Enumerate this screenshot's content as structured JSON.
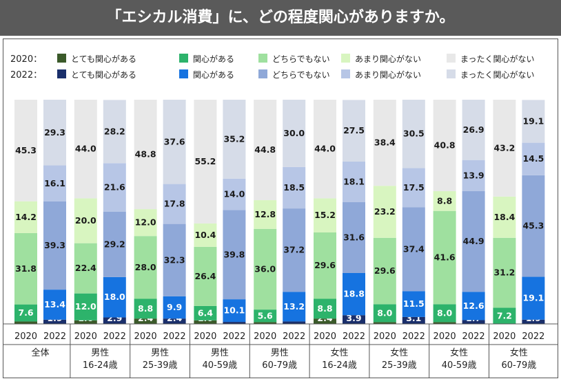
{
  "header": {
    "title": "「エシカル消費」に、どの程度関心がありますか。"
  },
  "legend": {
    "rows": [
      {
        "year": "2020：",
        "items": [
          {
            "label": "とても関心がある",
            "color": "#3b5a2a"
          },
          {
            "label": "関心がある",
            "color": "#2db36b"
          },
          {
            "label": "どちらでもない",
            "color": "#9fe09f"
          },
          {
            "label": "あまり関心がない",
            "color": "#d8f5c0"
          },
          {
            "label": "まったく関心がない",
            "color": "#e8e8e8"
          }
        ]
      },
      {
        "year": "2022：",
        "items": [
          {
            "label": "とても関心がある",
            "color": "#1a2f6b"
          },
          {
            "label": "関心がある",
            "color": "#1673e0"
          },
          {
            "label": "どちらでもない",
            "color": "#8fa8d8"
          },
          {
            "label": "あまり関心がない",
            "color": "#b7c6e6"
          },
          {
            "label": "まったく関心がない",
            "color": "#d6dce8"
          }
        ]
      }
    ]
  },
  "chart_data": {
    "type": "bar",
    "stacked": true,
    "percent": true,
    "title": "「エシカル消費」に、どの程度関心がありますか。",
    "series_names": [
      "とても関心がある",
      "関心がある",
      "どちらでもない",
      "あまり関心がない",
      "まったく関心がない"
    ],
    "groups": [
      {
        "label_lines": [
          "全体"
        ],
        "bars": [
          {
            "year": "2020",
            "values": [
              "1.1",
              "7.6",
              "31.8",
              "14.2",
              "45.3"
            ]
          },
          {
            "year": "2022",
            "values": [
              "1.9",
              "13.4",
              "39.3",
              "16.1",
              "29.3"
            ]
          }
        ]
      },
      {
        "label_lines": [
          "男性",
          "16-24歳"
        ],
        "bars": [
          {
            "year": "2020",
            "values": [
              "1.6",
              "12.0",
              "22.4",
              "20.0",
              "44.0"
            ]
          },
          {
            "year": "2022",
            "values": [
              "2.9",
              "18.0",
              "29.2",
              "21.6",
              "28.2"
            ]
          }
        ]
      },
      {
        "label_lines": [
          "男性",
          "25-39歳"
        ],
        "bars": [
          {
            "year": "2020",
            "values": [
              "2.4",
              "8.8",
              "28.0",
              "12.0",
              "48.8"
            ]
          },
          {
            "year": "2022",
            "values": [
              "2.4",
              "9.9",
              "32.3",
              "17.8",
              "37.6"
            ]
          }
        ]
      },
      {
        "label_lines": [
          "男性",
          "40-59歳"
        ],
        "bars": [
          {
            "year": "2020",
            "values": [
              "1.6",
              "6.4",
              "26.4",
              "10.4",
              "55.2"
            ]
          },
          {
            "year": "2022",
            "values": [
              "0.9",
              "10.1",
              "39.8",
              "14.0",
              "35.2"
            ]
          }
        ]
      },
      {
        "label_lines": [
          "男性",
          "60-79歳"
        ],
        "bars": [
          {
            "year": "2020",
            "values": [
              "0.8",
              "5.6",
              "36.0",
              "12.8",
              "44.8"
            ]
          },
          {
            "year": "2022",
            "values": [
              "1.1",
              "13.2",
              "37.2",
              "18.5",
              "30.0"
            ]
          }
        ]
      },
      {
        "label_lines": [
          "女性",
          "16-24歳"
        ],
        "bars": [
          {
            "year": "2020",
            "values": [
              "2.4",
              "8.8",
              "29.6",
              "15.2",
              "44.0"
            ]
          },
          {
            "year": "2022",
            "values": [
              "3.9",
              "18.8",
              "31.6",
              "18.1",
              "27.5"
            ]
          }
        ]
      },
      {
        "label_lines": [
          "女性",
          "25-39歳"
        ],
        "bars": [
          {
            "year": "2020",
            "values": [
              "0.8",
              "8.0",
              "29.6",
              "23.2",
              "38.4"
            ]
          },
          {
            "year": "2022",
            "values": [
              "3.1",
              "11.5",
              "37.4",
              "17.5",
              "30.5"
            ]
          }
        ]
      },
      {
        "label_lines": [
          "女性",
          "40-59歳"
        ],
        "bars": [
          {
            "year": "2020",
            "values": [
              "0.8",
              "8.0",
              "41.6",
              "8.8",
              "40.8"
            ]
          },
          {
            "year": "2022",
            "values": [
              "1.7",
              "12.6",
              "44.9",
              "13.9",
              "26.9"
            ]
          }
        ]
      },
      {
        "label_lines": [
          "女性",
          "60-79歳"
        ],
        "bars": [
          {
            "year": "2020",
            "values": [
              "0.0",
              "7.2",
              "31.2",
              "18.4",
              "43.2"
            ]
          },
          {
            "year": "2022",
            "values": [
              "1.9",
              "19.1",
              "45.3",
              "14.5",
              "19.1"
            ]
          }
        ]
      }
    ]
  }
}
